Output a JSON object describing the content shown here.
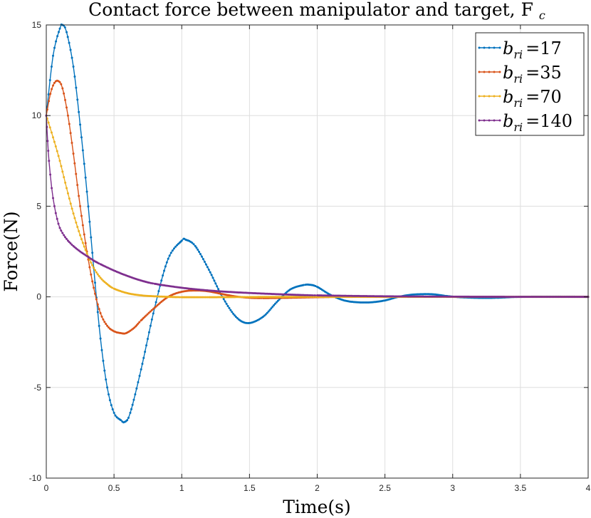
{
  "chart_data": {
    "type": "line",
    "title": "Contact force between manipulator and target, F",
    "title_subscript": "c",
    "xlabel": "Time(s)",
    "ylabel": "Force(N)",
    "xlim": [
      0,
      4
    ],
    "ylim": [
      -10,
      15
    ],
    "xticks": [
      "0",
      "0.5",
      "1",
      "1.5",
      "2",
      "2.5",
      "3",
      "3.5",
      "4"
    ],
    "yticks": [
      "-10",
      "-5",
      "0",
      "5",
      "10",
      "15"
    ],
    "grid": true,
    "legend_position": "top-right",
    "series": [
      {
        "name": "b_ri =17",
        "var": "b",
        "sub": "ri",
        "value": "17",
        "color": "#0072BD",
        "x": [
          0,
          0.05,
          0.1,
          0.12,
          0.15,
          0.2,
          0.25,
          0.3,
          0.35,
          0.4,
          0.45,
          0.5,
          0.55,
          0.58,
          0.62,
          0.7,
          0.8,
          0.9,
          1.0,
          1.03,
          1.1,
          1.2,
          1.3,
          1.4,
          1.49,
          1.6,
          1.7,
          1.8,
          1.9,
          1.95,
          2.0,
          2.1,
          2.2,
          2.3,
          2.4,
          2.5,
          2.6,
          2.7,
          2.8,
          2.87,
          2.95,
          3.05,
          3.2,
          3.33,
          3.5,
          3.8,
          4.0
        ],
        "y": [
          10,
          13.3,
          14.8,
          15.0,
          14.6,
          12.7,
          9.5,
          5.8,
          1.6,
          -2.3,
          -5.0,
          -6.4,
          -6.8,
          -6.9,
          -6.4,
          -4.0,
          -0.6,
          2.1,
          3.1,
          3.15,
          2.8,
          1.5,
          0.0,
          -1.1,
          -1.45,
          -1.1,
          -0.3,
          0.4,
          0.65,
          0.66,
          0.55,
          0.1,
          -0.2,
          -0.3,
          -0.3,
          -0.2,
          0.0,
          0.12,
          0.15,
          0.13,
          0.05,
          -0.02,
          -0.06,
          -0.05,
          0.0,
          0.01,
          0.0
        ]
      },
      {
        "name": "b_ri =35",
        "var": "b",
        "sub": "ri",
        "value": "35",
        "color": "#D95319",
        "x": [
          0,
          0.03,
          0.06,
          0.09,
          0.12,
          0.16,
          0.2,
          0.25,
          0.3,
          0.35,
          0.4,
          0.45,
          0.5,
          0.55,
          0.59,
          0.65,
          0.7,
          0.8,
          0.9,
          1.0,
          1.1,
          1.2,
          1.3,
          1.4,
          1.5,
          1.6,
          1.8,
          2.0,
          2.2,
          2.5,
          3.0,
          4.0
        ],
        "y": [
          10,
          11.2,
          11.8,
          11.9,
          11.5,
          10.0,
          7.9,
          5.0,
          2.5,
          0.5,
          -0.9,
          -1.6,
          -1.9,
          -2.0,
          -2.0,
          -1.7,
          -1.3,
          -0.6,
          0.0,
          0.28,
          0.35,
          0.3,
          0.15,
          0.02,
          -0.05,
          -0.07,
          -0.05,
          -0.02,
          0.0,
          0.0,
          0.0,
          0.0
        ]
      },
      {
        "name": "b_ri =70",
        "var": "b",
        "sub": "ri",
        "value": "70",
        "color": "#EDB120",
        "x": [
          0,
          0.05,
          0.1,
          0.15,
          0.2,
          0.25,
          0.3,
          0.35,
          0.4,
          0.45,
          0.5,
          0.6,
          0.7,
          0.8,
          0.9,
          1.0,
          1.2,
          1.5,
          2.0,
          3.0,
          4.0
        ],
        "y": [
          10,
          8.8,
          7.5,
          6.0,
          4.6,
          3.4,
          2.4,
          1.6,
          1.05,
          0.7,
          0.45,
          0.2,
          0.08,
          0.03,
          0.0,
          -0.02,
          -0.02,
          -0.01,
          0.0,
          0.0,
          0.0
        ],
        "style": "thick"
      },
      {
        "name": "b_ri =140",
        "var": "b",
        "sub": "ri",
        "value": "140",
        "color": "#7E2F8E",
        "x": [
          0,
          0.01,
          0.02,
          0.04,
          0.06,
          0.08,
          0.1,
          0.13,
          0.16,
          0.2,
          0.25,
          0.3,
          0.35,
          0.4,
          0.5,
          0.6,
          0.7,
          0.8,
          1.0,
          1.2,
          1.4,
          1.6,
          1.8,
          2.0,
          2.5,
          3.0,
          3.5,
          4.0
        ],
        "y": [
          10,
          8.6,
          7.5,
          6.0,
          5.0,
          4.3,
          3.8,
          3.4,
          3.1,
          2.8,
          2.5,
          2.25,
          2.0,
          1.8,
          1.45,
          1.15,
          0.9,
          0.72,
          0.5,
          0.35,
          0.25,
          0.18,
          0.12,
          0.08,
          0.03,
          0.01,
          0.0,
          0.0
        ]
      }
    ]
  }
}
